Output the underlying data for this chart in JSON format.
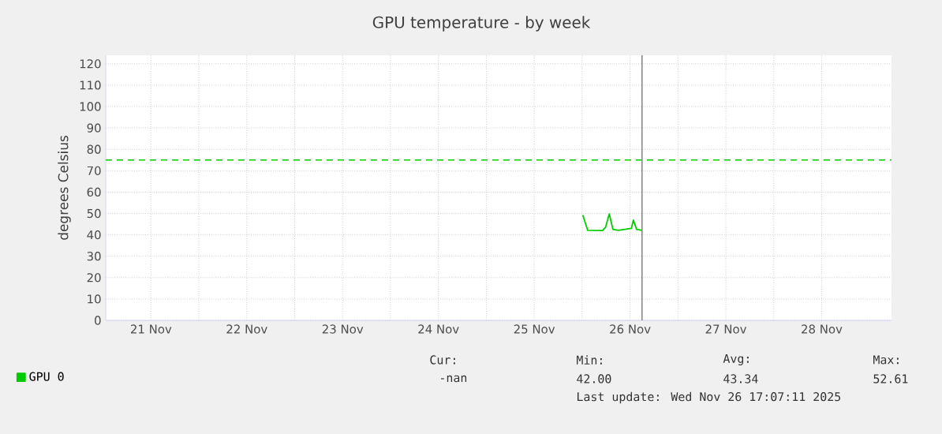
{
  "chart_data": {
    "type": "line",
    "title": "GPU temperature - by week",
    "ylabel": "degrees Celsius",
    "xlim": [
      "2025-11-21T00:40",
      "2025-11-29T05:30"
    ],
    "xticks": [
      {
        "value": "2025-11-21T12:00",
        "label": "21 Nov"
      },
      {
        "value": "2025-11-22T12:00",
        "label": "22 Nov"
      },
      {
        "value": "2025-11-23T12:00",
        "label": "23 Nov"
      },
      {
        "value": "2025-11-24T12:00",
        "label": "24 Nov"
      },
      {
        "value": "2025-11-25T12:00",
        "label": "25 Nov"
      },
      {
        "value": "2025-11-26T12:00",
        "label": "26 Nov"
      },
      {
        "value": "2025-11-27T12:00",
        "label": "27 Nov"
      },
      {
        "value": "2025-11-28T12:00",
        "label": "28 Nov"
      }
    ],
    "ylim": [
      0,
      124
    ],
    "yticks": [
      0,
      10,
      20,
      30,
      40,
      50,
      60,
      70,
      80,
      90,
      100,
      110,
      120
    ],
    "grid": true,
    "legend": "bottom left",
    "marker": "none",
    "series": [
      {
        "name": "GPU 0",
        "color": "#00cc00",
        "x": [
          "2025-11-26T00:10",
          "2025-11-26T01:24",
          "2025-11-26T05:07",
          "2025-11-26T05:53",
          "2025-11-26T06:48",
          "2025-11-26T07:42",
          "2025-11-26T09:03",
          "2025-11-26T10:45",
          "2025-11-26T12:20",
          "2025-11-26T12:50",
          "2025-11-26T13:38",
          "2025-11-26T14:59"
        ],
        "values": [
          49.3,
          42.1,
          42.0,
          43.6,
          49.8,
          42.6,
          42.1,
          42.6,
          43.0,
          46.9,
          42.6,
          42.1
        ]
      }
    ],
    "ref_lines": [
      {
        "axis": "y",
        "value": 75,
        "color": "#00cc00",
        "line_style": "dashed"
      },
      {
        "axis": "x",
        "value": "2025-11-26T15:00",
        "color": "#888888",
        "line_style": "solid"
      }
    ],
    "annotations": [
      "Cur:",
      "-nan",
      "Min:",
      "42.00",
      "Avg:",
      "43.34",
      "Max:",
      "52.61",
      "Last update: Wed Nov 26 17:07:11 2025"
    ]
  }
}
